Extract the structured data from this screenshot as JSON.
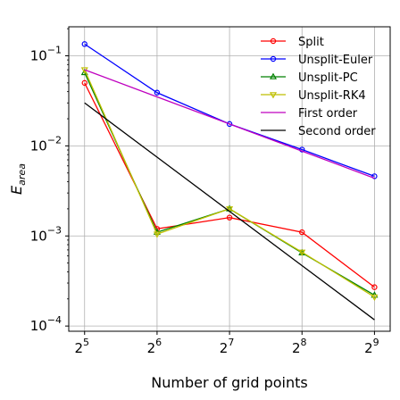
{
  "chart_data": {
    "type": "line",
    "title": "",
    "xlabel": "Number of grid points",
    "ylabel_base": "E",
    "ylabel_sub": "area",
    "x_scale": "log2",
    "y_scale": "log10",
    "x": [
      32,
      64,
      128,
      256,
      512
    ],
    "x_tick_labels": [
      {
        "base": "2",
        "exp": "5"
      },
      {
        "base": "2",
        "exp": "6"
      },
      {
        "base": "2",
        "exp": "7"
      },
      {
        "base": "2",
        "exp": "8"
      },
      {
        "base": "2",
        "exp": "9"
      }
    ],
    "y_ticks": [
      0.0001,
      0.001,
      0.01,
      0.1
    ],
    "y_tick_labels": [
      {
        "base": "10",
        "exp": "−4"
      },
      {
        "base": "10",
        "exp": "−3"
      },
      {
        "base": "10",
        "exp": "−2"
      },
      {
        "base": "10",
        "exp": "−1"
      }
    ],
    "xlim": [
      27.5,
      595
    ],
    "ylim": [
      8.75e-05,
      0.21
    ],
    "grid": true,
    "legend_position": "top-right",
    "series": [
      {
        "name": "Split",
        "color": "#ff0000",
        "marker": "circle",
        "values": [
          0.05,
          0.0012,
          0.0016,
          0.0011,
          0.00027
        ]
      },
      {
        "name": "Unsplit-Euler",
        "color": "#0000ff",
        "marker": "circle",
        "values": [
          0.135,
          0.039,
          0.0175,
          0.0091,
          0.0046
        ]
      },
      {
        "name": "Unsplit-PC",
        "color": "#008000",
        "marker": "triangle-up",
        "values": [
          0.065,
          0.0011,
          0.002,
          0.00065,
          0.00022
        ]
      },
      {
        "name": "Unsplit-RK4",
        "color": "#bfbf00",
        "marker": "triangle-down",
        "values": [
          0.07,
          0.00105,
          0.002,
          0.00066,
          0.00021
        ]
      },
      {
        "name": "First order",
        "color": "#bf00bf",
        "marker": "none",
        "values": [
          0.07,
          0.035,
          0.0175,
          0.00875,
          0.004375
        ]
      },
      {
        "name": "Second order",
        "color": "#000000",
        "marker": "none",
        "values": [
          0.03,
          0.0075,
          0.001875,
          0.00046875,
          0.0001171875
        ]
      }
    ]
  }
}
